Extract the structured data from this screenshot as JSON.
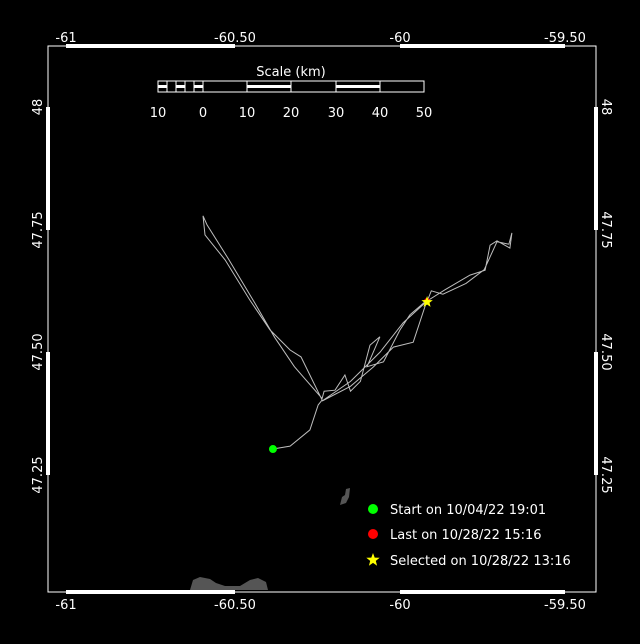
{
  "map": {
    "lon_ticks": [
      "-61",
      "-60.50",
      "-60",
      "-59.50"
    ],
    "lat_ticks": [
      "48",
      "47.75",
      "47.50",
      "47.25"
    ],
    "lon_range": [
      -61.05,
      -59.45
    ],
    "lat_range": [
      47.05,
      48.12
    ],
    "background": "#000000",
    "track_color": "#bebebe",
    "land_color": "#555555"
  },
  "scale": {
    "title": "Scale (km)",
    "labels": [
      "10",
      "0",
      "10",
      "20",
      "30",
      "40",
      "50"
    ]
  },
  "track": [
    [
      -60.385,
      47.302
    ],
    [
      -60.333,
      47.308
    ],
    [
      -60.273,
      47.341
    ],
    [
      -60.248,
      47.392
    ],
    [
      -60.236,
      47.402
    ],
    [
      -60.3,
      47.49
    ],
    [
      -60.333,
      47.504
    ],
    [
      -60.394,
      47.545
    ],
    [
      -60.455,
      47.606
    ],
    [
      -60.53,
      47.688
    ],
    [
      -60.591,
      47.739
    ],
    [
      -60.597,
      47.778
    ],
    [
      -60.585,
      47.76
    ],
    [
      -60.52,
      47.69
    ],
    [
      -60.44,
      47.6
    ],
    [
      -60.38,
      47.53
    ],
    [
      -60.32,
      47.47
    ],
    [
      -60.236,
      47.405
    ],
    [
      -60.23,
      47.42
    ],
    [
      -60.197,
      47.422
    ],
    [
      -60.167,
      47.453
    ],
    [
      -60.15,
      47.42
    ],
    [
      -60.12,
      47.44
    ],
    [
      -60.091,
      47.514
    ],
    [
      -60.061,
      47.531
    ],
    [
      -60.1,
      47.47
    ],
    [
      -60.05,
      47.48
    ],
    [
      -60.0,
      47.545
    ],
    [
      -59.97,
      47.576
    ],
    [
      -59.918,
      47.606
    ],
    [
      -59.96,
      47.52
    ],
    [
      -60.02,
      47.51
    ],
    [
      -60.08,
      47.47
    ],
    [
      -60.15,
      47.43
    ],
    [
      -60.236,
      47.4
    ],
    [
      -60.15,
      47.44
    ],
    [
      -60.06,
      47.5
    ],
    [
      -59.99,
      47.56
    ],
    [
      -59.918,
      47.604
    ],
    [
      -59.864,
      47.627
    ],
    [
      -59.788,
      47.657
    ],
    [
      -59.742,
      47.667
    ],
    [
      -59.727,
      47.718
    ],
    [
      -59.706,
      47.727
    ],
    [
      -59.667,
      47.712
    ],
    [
      -59.661,
      47.743
    ],
    [
      -59.67,
      47.72
    ],
    [
      -59.706,
      47.725
    ],
    [
      -59.745,
      47.668
    ],
    [
      -59.8,
      47.64
    ],
    [
      -59.87,
      47.618
    ],
    [
      -59.905,
      47.625
    ],
    [
      -59.918,
      47.603
    ]
  ],
  "legend": {
    "start": {
      "label": "Start on 10/04/22 19:01",
      "color": "#00ff00",
      "lon": -60.385,
      "lat": 47.302
    },
    "last": {
      "label": "Last on 10/28/22 15:16",
      "color": "#ff0000",
      "lon": -59.918,
      "lat": 47.604
    },
    "selected": {
      "label": "Selected on 10/28/22 13:16",
      "color": "#ffff00",
      "lon": -59.918,
      "lat": 47.602
    }
  }
}
